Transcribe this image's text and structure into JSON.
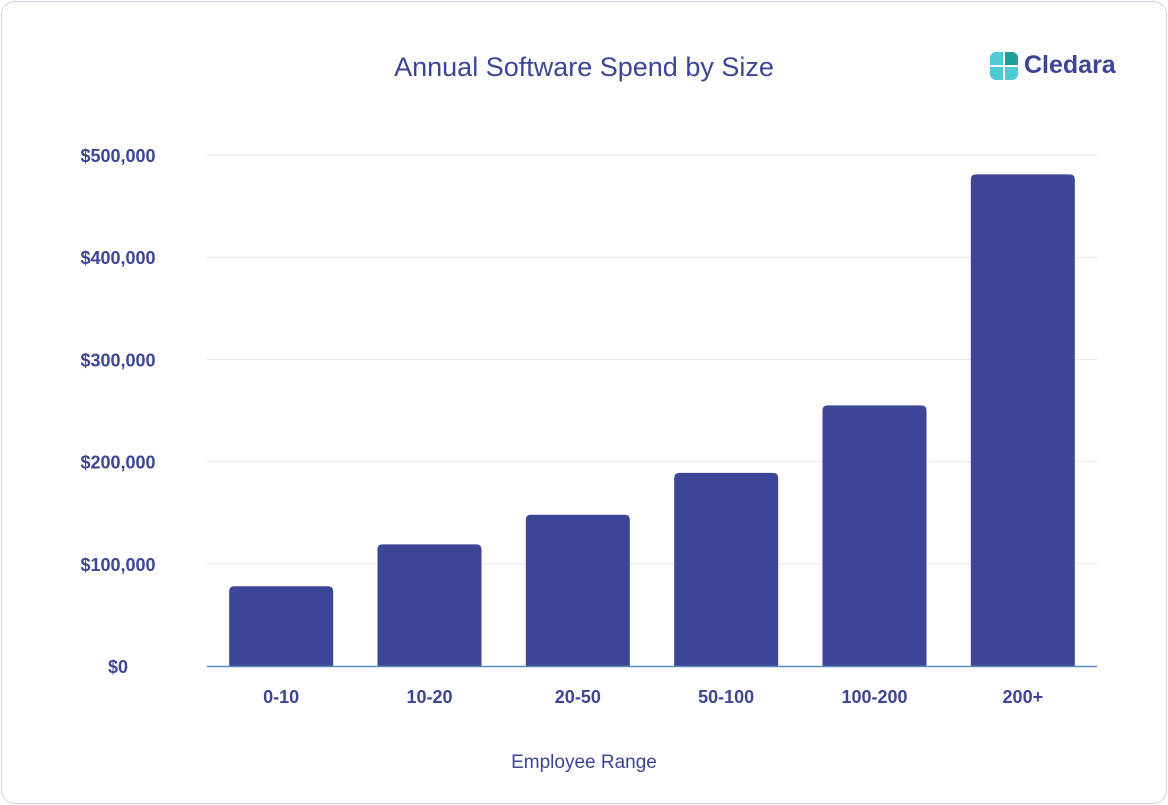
{
  "chart_data": {
    "type": "bar",
    "title": "Annual Software Spend by Size",
    "xlabel": "Employee Range",
    "ylabel": "",
    "categories": [
      "0-10",
      "10-20",
      "20-50",
      "50-100",
      "100-200",
      "200+"
    ],
    "values": [
      78000,
      119000,
      148000,
      189000,
      255000,
      481000
    ],
    "ylim": [
      0,
      500000
    ],
    "yticks": [
      0,
      100000,
      200000,
      300000,
      400000,
      500000
    ],
    "ytick_labels": [
      "$0",
      "$100,000",
      "$200,000",
      "$300,000",
      "$400,000",
      "$500,000"
    ],
    "grid": true,
    "legend": "none",
    "bar_color": "#3d4597",
    "axis_color": "#5b8cc0"
  },
  "brand": {
    "name": "Cledara",
    "logo_icon": "cledara-logo-icon",
    "colors": [
      "#4fc9d3",
      "#1f9e98"
    ]
  }
}
